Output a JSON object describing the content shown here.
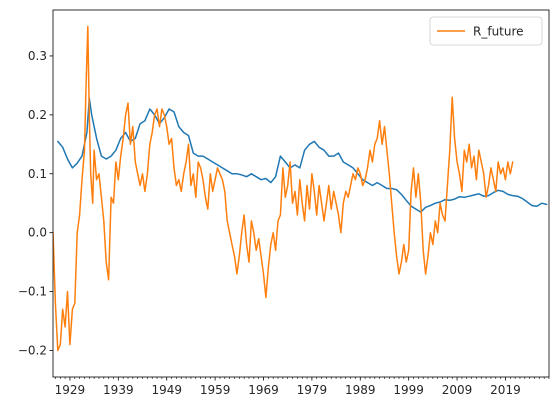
{
  "chart_data": {
    "type": "line",
    "title": "",
    "xlabel": "",
    "ylabel": "",
    "xlim": [
      1925.5,
      2028.0
    ],
    "ylim": [
      -0.245,
      0.378
    ],
    "x_ticks": [
      1929,
      1939,
      1949,
      1959,
      1969,
      1979,
      1989,
      1999,
      2009,
      2019
    ],
    "y_ticks": [
      -0.2,
      -0.1,
      0.0,
      0.1,
      0.2,
      0.3
    ],
    "y_tick_labels": [
      "−0.2",
      "−0.1",
      "0.0",
      "0.1",
      "0.2",
      "0.3"
    ],
    "grid": false,
    "legend": {
      "placement": "top-right",
      "entries": [
        "R_future"
      ]
    },
    "series": [
      {
        "color": "#1f77b4",
        "x": [
          1926.5,
          1927.5,
          1928.5,
          1929.5,
          1930.5,
          1931.5,
          1932.5,
          1933.0,
          1933.5,
          1934.5,
          1935.5,
          1936.5,
          1937.5,
          1938.5,
          1939.5,
          1940.5,
          1941.5,
          1942.5,
          1943.5,
          1944.5,
          1945.5,
          1946.5,
          1947.5,
          1948.5,
          1949.5,
          1950.5,
          1951.5,
          1952.5,
          1953.5,
          1954.5,
          1955.5,
          1956.5,
          1957.5,
          1958.5,
          1959.5,
          1960.5,
          1961.5,
          1962.5,
          1963.5,
          1964.5,
          1965.5,
          1966.5,
          1967.5,
          1968.5,
          1969.5,
          1970.5,
          1971.5,
          1972.5,
          1973.5,
          1974.5,
          1975.5,
          1976.5,
          1977.5,
          1978.5,
          1979.5,
          1980.5,
          1981.5,
          1982.5,
          1983.5,
          1984.5,
          1985.5,
          1986.5,
          1987.5,
          1988.5,
          1989.5,
          1990.5,
          1991.5,
          1992.5,
          1993.5,
          1994.5,
          1995.5,
          1996.5,
          1997.5,
          1998.5,
          1999.5,
          2000.5,
          2001.5,
          2002.5,
          2003.5,
          2004.5,
          2005.5,
          2006.5,
          2007.5,
          2008.5,
          2009.5,
          2010.5,
          2011.5,
          2012.5,
          2013.5,
          2014.5,
          2015.5,
          2016.5,
          2017.5,
          2018.5,
          2019.5,
          2020.5,
          2021.5,
          2022.5,
          2023.5,
          2024.5,
          2025.5,
          2026.5,
          2027.5
        ],
        "y": [
          0.155,
          0.145,
          0.125,
          0.11,
          0.118,
          0.13,
          0.17,
          0.228,
          0.2,
          0.16,
          0.13,
          0.125,
          0.13,
          0.14,
          0.16,
          0.17,
          0.155,
          0.16,
          0.185,
          0.19,
          0.21,
          0.2,
          0.185,
          0.195,
          0.21,
          0.205,
          0.18,
          0.17,
          0.165,
          0.135,
          0.13,
          0.13,
          0.125,
          0.12,
          0.115,
          0.11,
          0.105,
          0.1,
          0.1,
          0.098,
          0.095,
          0.1,
          0.095,
          0.09,
          0.092,
          0.085,
          0.095,
          0.13,
          0.12,
          0.11,
          0.115,
          0.11,
          0.14,
          0.15,
          0.155,
          0.145,
          0.14,
          0.13,
          0.13,
          0.135,
          0.12,
          0.115,
          0.11,
          0.1,
          0.09,
          0.085,
          0.08,
          0.085,
          0.08,
          0.075,
          0.075,
          0.073,
          0.065,
          0.055,
          0.045,
          0.04,
          0.035,
          0.043,
          0.046,
          0.05,
          0.052,
          0.056,
          0.055,
          0.057,
          0.061,
          0.06,
          0.062,
          0.064,
          0.066,
          0.062,
          0.063,
          0.068,
          0.072,
          0.07,
          0.065,
          0.063,
          0.062,
          0.058,
          0.052,
          0.046,
          0.045,
          0.05,
          0.048
        ]
      },
      {
        "name": "R_future",
        "color": "#ff7f0e",
        "x": [
          1925.5,
          1926.0,
          1926.5,
          1927.0,
          1927.5,
          1928.0,
          1928.5,
          1929.0,
          1929.5,
          1930.0,
          1930.5,
          1931.0,
          1931.5,
          1932.0,
          1932.3,
          1932.7,
          1933.0,
          1933.3,
          1933.7,
          1934.0,
          1934.5,
          1935.0,
          1935.5,
          1936.0,
          1936.5,
          1937.0,
          1937.5,
          1938.0,
          1938.5,
          1939.0,
          1939.5,
          1940.0,
          1940.5,
          1941.0,
          1941.5,
          1942.0,
          1942.5,
          1943.0,
          1943.5,
          1944.0,
          1944.5,
          1945.0,
          1945.5,
          1946.0,
          1946.5,
          1947.0,
          1947.5,
          1948.0,
          1948.5,
          1949.0,
          1949.5,
          1950.0,
          1950.5,
          1951.0,
          1951.5,
          1952.0,
          1952.5,
          1953.0,
          1953.5,
          1954.0,
          1954.5,
          1955.0,
          1955.5,
          1956.0,
          1956.5,
          1957.0,
          1957.5,
          1958.0,
          1958.5,
          1959.0,
          1959.5,
          1960.0,
          1960.5,
          1961.0,
          1961.5,
          1962.0,
          1962.5,
          1963.0,
          1963.5,
          1964.0,
          1964.5,
          1965.0,
          1965.5,
          1966.0,
          1966.5,
          1967.0,
          1967.5,
          1968.0,
          1968.5,
          1969.0,
          1969.5,
          1970.0,
          1970.5,
          1971.0,
          1971.5,
          1972.0,
          1972.5,
          1973.0,
          1973.5,
          1974.0,
          1974.5,
          1975.0,
          1975.5,
          1976.0,
          1976.5,
          1977.0,
          1977.5,
          1978.0,
          1978.5,
          1979.0,
          1979.5,
          1980.0,
          1980.5,
          1981.0,
          1981.5,
          1982.0,
          1982.5,
          1983.0,
          1983.5,
          1984.0,
          1984.5,
          1985.0,
          1985.5,
          1986.0,
          1986.5,
          1987.0,
          1987.5,
          1988.0,
          1988.5,
          1989.0,
          1989.5,
          1990.0,
          1990.5,
          1991.0,
          1991.5,
          1992.0,
          1992.5,
          1993.0,
          1993.5,
          1994.0,
          1994.5,
          1995.0,
          1995.5,
          1996.0,
          1996.5,
          1997.0,
          1997.5,
          1998.0,
          1998.5,
          1999.0,
          1999.5,
          2000.0,
          2000.5,
          2001.0,
          2001.5,
          2002.0,
          2002.5,
          2003.0,
          2003.5,
          2004.0,
          2004.5,
          2005.0,
          2005.5,
          2006.0,
          2006.5,
          2007.0,
          2007.5,
          2008.0,
          2008.5,
          2009.0,
          2009.5,
          2010.0,
          2010.5,
          2011.0,
          2011.5,
          2012.0,
          2012.5,
          2013.0,
          2013.5,
          2014.0,
          2014.5,
          2015.0,
          2015.5,
          2016.0,
          2016.5,
          2017.0,
          2017.5,
          2018.0,
          2018.5,
          2019.0,
          2019.5,
          2020.0,
          2020.5
        ],
        "y": [
          0.0,
          -0.12,
          -0.2,
          -0.19,
          -0.13,
          -0.16,
          -0.1,
          -0.19,
          -0.13,
          -0.12,
          0.0,
          0.03,
          0.09,
          0.14,
          0.24,
          0.35,
          0.2,
          0.1,
          0.05,
          0.14,
          0.09,
          0.1,
          0.06,
          0.02,
          -0.05,
          -0.08,
          0.06,
          0.05,
          0.12,
          0.09,
          0.13,
          0.16,
          0.2,
          0.22,
          0.15,
          0.18,
          0.12,
          0.1,
          0.08,
          0.1,
          0.07,
          0.1,
          0.15,
          0.17,
          0.2,
          0.21,
          0.18,
          0.21,
          0.2,
          0.18,
          0.15,
          0.16,
          0.11,
          0.08,
          0.09,
          0.07,
          0.1,
          0.12,
          0.15,
          0.08,
          0.1,
          0.06,
          0.12,
          0.11,
          0.09,
          0.06,
          0.04,
          0.1,
          0.07,
          0.09,
          0.11,
          0.1,
          0.09,
          0.07,
          0.02,
          0.0,
          -0.02,
          -0.04,
          -0.07,
          -0.04,
          0.0,
          0.03,
          -0.02,
          -0.05,
          0.02,
          0.0,
          -0.03,
          -0.01,
          -0.04,
          -0.07,
          -0.11,
          -0.06,
          -0.02,
          0.0,
          -0.03,
          0.02,
          0.03,
          0.11,
          0.06,
          0.08,
          0.12,
          0.05,
          0.07,
          0.03,
          0.09,
          0.05,
          0.02,
          0.08,
          0.04,
          0.1,
          0.07,
          0.03,
          0.08,
          0.05,
          0.02,
          0.05,
          0.08,
          0.04,
          0.07,
          0.05,
          0.03,
          0.0,
          0.05,
          0.07,
          0.06,
          0.08,
          0.1,
          0.09,
          0.11,
          0.1,
          0.08,
          0.09,
          0.11,
          0.14,
          0.12,
          0.15,
          0.16,
          0.19,
          0.15,
          0.18,
          0.14,
          0.1,
          0.05,
          0.0,
          -0.04,
          -0.07,
          -0.05,
          -0.02,
          -0.05,
          -0.03,
          0.07,
          0.11,
          0.06,
          0.1,
          0.05,
          -0.03,
          -0.07,
          -0.04,
          0.0,
          -0.02,
          0.02,
          0.0,
          0.05,
          0.03,
          0.02,
          0.08,
          0.14,
          0.23,
          0.16,
          0.12,
          0.1,
          0.07,
          0.14,
          0.12,
          0.15,
          0.11,
          0.13,
          0.09,
          0.14,
          0.12,
          0.1,
          0.06,
          0.08,
          0.11,
          0.09,
          0.07,
          0.12,
          0.1,
          0.11,
          0.09,
          0.12,
          0.1,
          0.12
        ]
      }
    ]
  }
}
